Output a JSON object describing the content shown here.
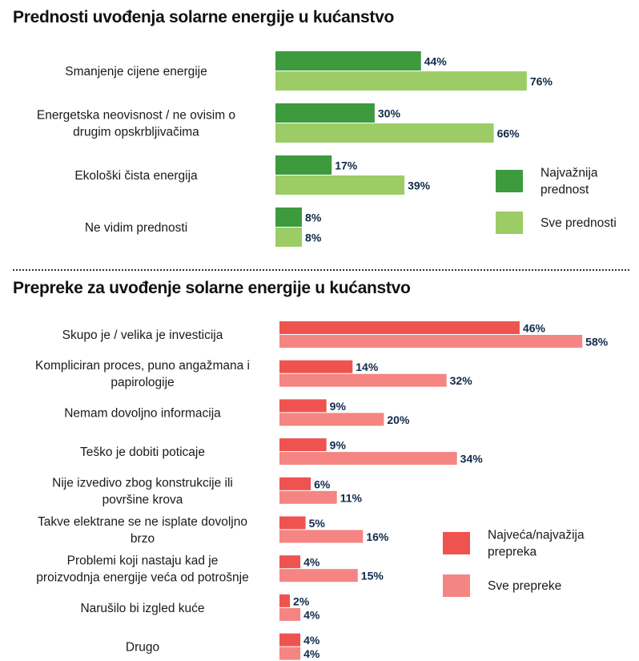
{
  "chart_data": [
    {
      "type": "bar",
      "orientation": "horizontal",
      "title": "Prednosti uvođenja solarne energije u kućanstvo",
      "categories": [
        [
          "Smanjenje cijene energije"
        ],
        [
          "Energetska neovisnost / ne ovisim o",
          "drugim opskrbljivačima"
        ],
        [
          "Ekološki čista energija"
        ],
        [
          "Ne vidim prednosti"
        ]
      ],
      "series": [
        {
          "name": "Najvažnija prednost",
          "values": [
            44,
            30,
            17,
            8
          ],
          "color": "#3d9a3d"
        },
        {
          "name": "Sve prednosti",
          "values": [
            76,
            66,
            39,
            8
          ],
          "color": "#9ccc65"
        }
      ],
      "legend": {
        "position": "right",
        "labels": [
          [
            "Najvažnija",
            "prednost"
          ],
          [
            "Sve prednosti"
          ]
        ]
      },
      "value_suffix": "%",
      "grid": false
    },
    {
      "type": "bar",
      "orientation": "horizontal",
      "title": "Prepreke za uvođenje solarne energije u kućanstvo",
      "categories": [
        [
          "Skupo je / velika je investicija"
        ],
        [
          "Kompliciran proces, puno angažmana i",
          "papirologije"
        ],
        [
          "Nemam dovoljno informacija"
        ],
        [
          "Teško je dobiti poticaje"
        ],
        [
          "Nije izvedivo zbog konstrukcije ili",
          "površine krova"
        ],
        [
          "Takve elektrane se ne isplate dovoljno",
          "brzo"
        ],
        [
          "Problemi koji nastaju kad je",
          "proizvodnja energije veća od potrošnje"
        ],
        [
          "Narušilo bi izgled kuće"
        ],
        [
          "Drugo"
        ]
      ],
      "series": [
        {
          "name": "Najveća/najvažija prepreka",
          "values": [
            46,
            14,
            9,
            9,
            6,
            5,
            4,
            2,
            4
          ],
          "color": "#ef5350"
        },
        {
          "name": "Sve prepreke",
          "values": [
            58,
            32,
            20,
            34,
            11,
            16,
            15,
            4,
            4
          ],
          "color": "#f48582"
        }
      ],
      "legend": {
        "position": "right",
        "labels": [
          [
            "Najveća/najvažija",
            "prepreka"
          ],
          [
            "Sve prepreke"
          ]
        ]
      },
      "value_suffix": "%",
      "grid": false
    }
  ]
}
